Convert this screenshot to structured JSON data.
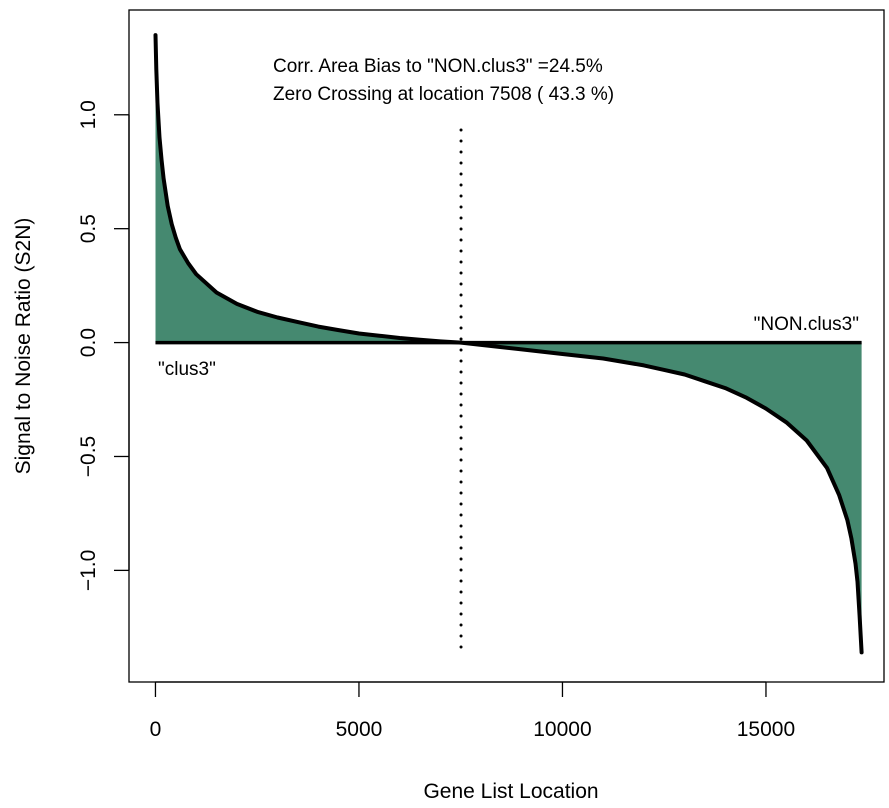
{
  "chart_data": {
    "type": "area",
    "xlabel": "Gene List Location",
    "ylabel": "Signal to Noise Ratio (S2N)",
    "xlim": [
      -650,
      17900
    ],
    "ylim": [
      -1.49,
      1.46
    ],
    "xticks": [
      0,
      5000,
      10000,
      15000
    ],
    "xtick_labels": [
      "0",
      "5000",
      "10000",
      "15000"
    ],
    "yticks": [
      -1.0,
      -0.5,
      0.0,
      0.5,
      1.0
    ],
    "ytick_labels": [
      "−1.0",
      "−0.5",
      "0.0",
      "0.5",
      "1.0"
    ],
    "grid": false,
    "legend": "none",
    "annotations": {
      "line1": "Corr. Area Bias to \"NON.clus3\" =24.5%",
      "line2": "Zero Crossing at location  7508  ( 43.3  %)"
    },
    "class_labels": {
      "left": "\"clus3\"",
      "right": "\"NON.clus3\""
    },
    "zero_crossing": 7508,
    "zero_crossing_percent": 43.3,
    "n_genes": 17350,
    "series": [
      {
        "x": [
          0,
          20,
          50,
          100,
          150,
          200,
          300,
          400,
          500,
          600,
          800,
          1000,
          1500,
          2000,
          2500,
          3000,
          3500,
          4000,
          4500,
          5000,
          5500,
          6000,
          6500,
          7000,
          7508,
          8000,
          9000,
          10000,
          11000,
          12000,
          12500,
          13000,
          13500,
          14000,
          14500,
          15000,
          15500,
          16000,
          16500,
          16800,
          17000,
          17100,
          17200,
          17250,
          17300,
          17350
        ],
        "values": [
          1.35,
          1.2,
          1.05,
          0.9,
          0.8,
          0.72,
          0.6,
          0.52,
          0.46,
          0.41,
          0.35,
          0.3,
          0.22,
          0.17,
          0.135,
          0.11,
          0.09,
          0.07,
          0.055,
          0.04,
          0.03,
          0.02,
          0.012,
          0.005,
          0.0,
          -0.01,
          -0.03,
          -0.05,
          -0.07,
          -0.1,
          -0.12,
          -0.14,
          -0.17,
          -0.2,
          -0.24,
          -0.29,
          -0.35,
          -0.43,
          -0.55,
          -0.67,
          -0.78,
          -0.86,
          -0.97,
          -1.05,
          -1.2,
          -1.36
        ]
      }
    ],
    "colors": {
      "fill": "#458970",
      "line": "#000000",
      "axis": "#000000"
    }
  }
}
